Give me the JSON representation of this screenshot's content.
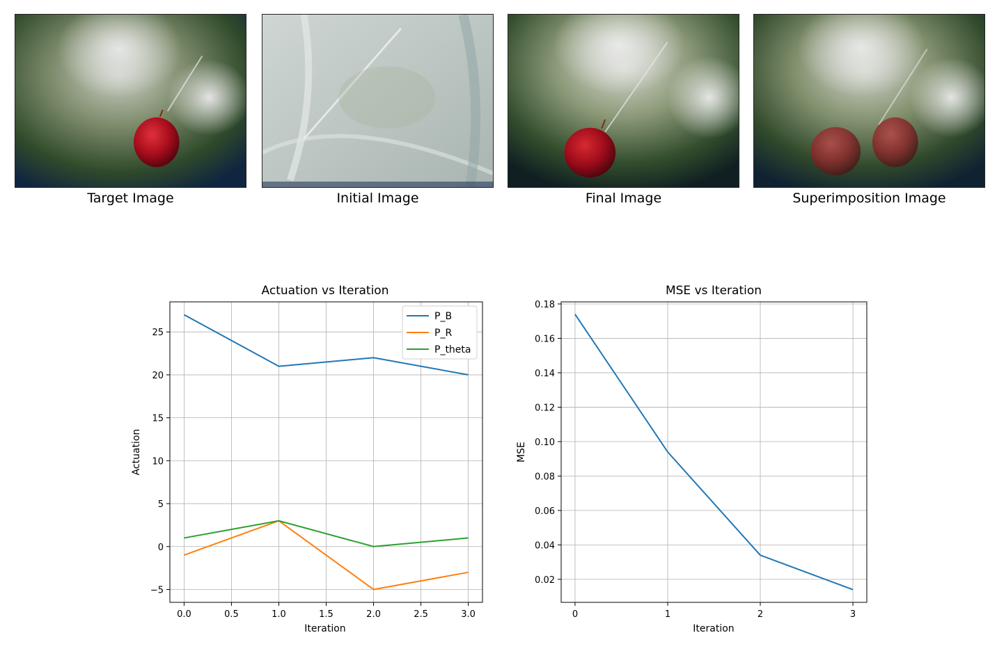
{
  "images": [
    {
      "caption": "Target Image"
    },
    {
      "caption": "Initial Image"
    },
    {
      "caption": "Final Image"
    },
    {
      "caption": "Superimposition Image"
    }
  ],
  "colors": {
    "blue": "#1f77b4",
    "orange": "#ff7f0e",
    "green": "#2ca02c",
    "grid": "#b0b0b0"
  },
  "chart_data": [
    {
      "type": "line",
      "title": "Actuation vs Iteration",
      "xlabel": "Iteration",
      "ylabel": "Actuation",
      "xlim": [
        -0.15,
        3.15
      ],
      "ylim": [
        -6.5,
        28.5
      ],
      "xticks": [
        0.0,
        0.5,
        1.0,
        1.5,
        2.0,
        2.5,
        3.0
      ],
      "xtick_labels": [
        "0.0",
        "0.5",
        "1.0",
        "1.5",
        "2.0",
        "2.5",
        "3.0"
      ],
      "yticks": [
        -5,
        0,
        5,
        10,
        15,
        20,
        25
      ],
      "ytick_labels": [
        "−5",
        "0",
        "5",
        "10",
        "15",
        "20",
        "25"
      ],
      "grid": true,
      "legend": "top-right",
      "x": [
        0,
        1,
        2,
        3
      ],
      "series": [
        {
          "name": "P_B",
          "color": "#1f77b4",
          "values": [
            27,
            21,
            22,
            20
          ]
        },
        {
          "name": "P_R",
          "color": "#ff7f0e",
          "values": [
            -1,
            3,
            -5,
            -3
          ]
        },
        {
          "name": "P_theta",
          "color": "#2ca02c",
          "values": [
            1,
            3,
            0,
            1
          ]
        }
      ]
    },
    {
      "type": "line",
      "title": "MSE vs Iteration",
      "xlabel": "Iteration",
      "ylabel": "MSE",
      "xlim": [
        -0.15,
        3.15
      ],
      "ylim": [
        0.0066,
        0.1812
      ],
      "xticks": [
        0,
        1,
        2,
        3
      ],
      "xtick_labels": [
        "0",
        "1",
        "2",
        "3"
      ],
      "yticks": [
        0.02,
        0.04,
        0.06,
        0.08,
        0.1,
        0.12,
        0.14,
        0.16,
        0.18
      ],
      "ytick_labels": [
        "0.02",
        "0.04",
        "0.06",
        "0.08",
        "0.10",
        "0.12",
        "0.14",
        "0.16",
        "0.18"
      ],
      "grid": true,
      "x": [
        0,
        1,
        2,
        3
      ],
      "series": [
        {
          "color": "#1f77b4",
          "values": [
            0.174,
            0.094,
            0.034,
            0.014
          ]
        }
      ]
    }
  ]
}
